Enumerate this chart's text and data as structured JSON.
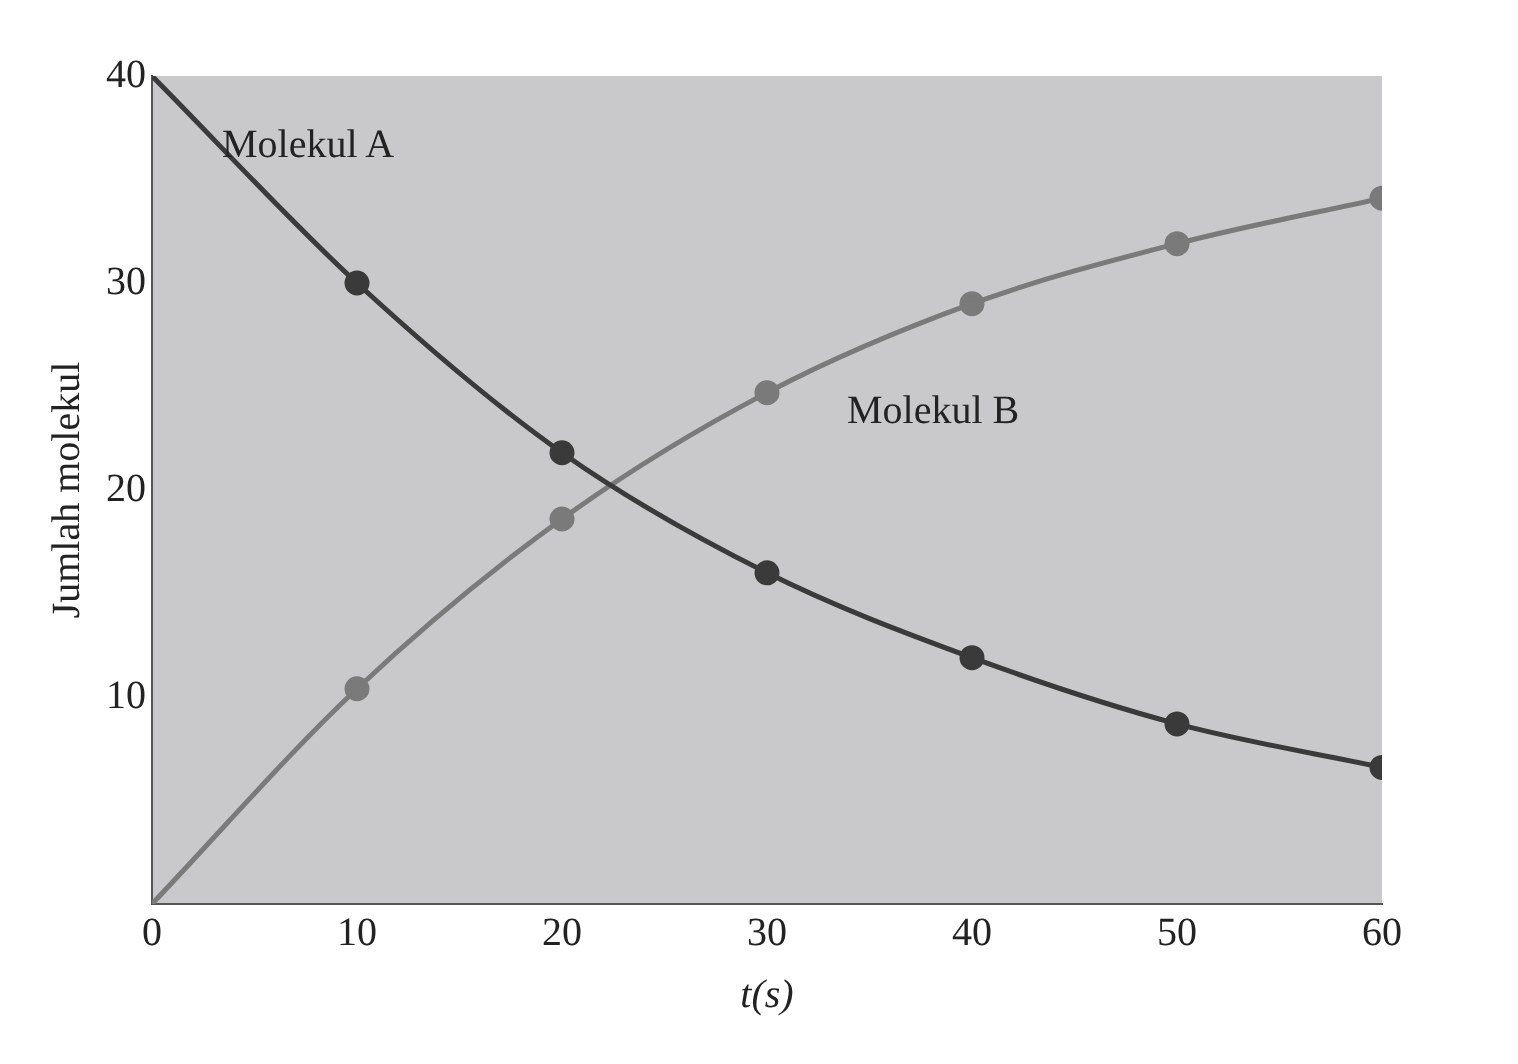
{
  "chart_data": {
    "type": "line",
    "xlabel": "t(s)",
    "ylabel": "Jumlah molekul",
    "x": [
      0,
      10,
      20,
      30,
      40,
      50,
      60
    ],
    "series": [
      {
        "name": "Molekul A",
        "color": "#3a3a3a",
        "values": [
          40,
          30,
          21.8,
          16,
          11.9,
          8.7,
          6.6
        ]
      },
      {
        "name": "Molekul B",
        "color": "#7a7a7a",
        "values": [
          0,
          10.4,
          18.6,
          24.7,
          29,
          31.9,
          34.1
        ]
      }
    ],
    "xlim": [
      0,
      60
    ],
    "xticks": [
      0,
      10,
      20,
      30,
      40,
      50,
      60
    ],
    "ylim": [
      0,
      40
    ],
    "yticks": [
      10,
      20,
      30,
      40
    ],
    "grid": false,
    "legend": false,
    "marker": "circle",
    "line_style": "solid"
  }
}
